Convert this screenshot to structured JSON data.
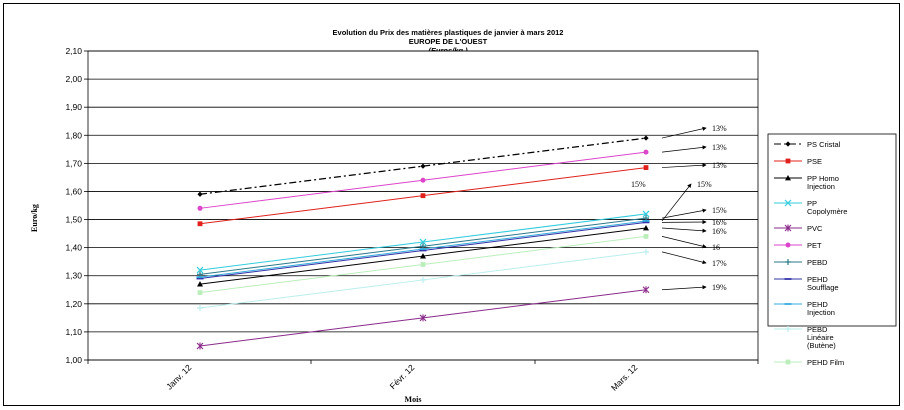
{
  "chart_data": {
    "type": "line",
    "title": "Evolution du Prix des matières plastiques de janvier à mars 2012",
    "subtitle": "EUROPE DE L'OUEST",
    "unit_text": "(Euros/kg )",
    "xlabel": "Mois",
    "ylabel": "Euro/kg",
    "ylim": [
      1.0,
      2.1
    ],
    "yticks": [
      "1,00",
      "1,10",
      "1,20",
      "1,30",
      "1,40",
      "1,50",
      "1,60",
      "1,70",
      "1,80",
      "1,90",
      "2,00",
      "2,10"
    ],
    "categories": [
      "Janv. 12",
      "Févr. 12",
      "Mars. 12"
    ],
    "grid": true,
    "legend_position": "right",
    "series": [
      {
        "name": "PS Cristal",
        "values": [
          1.59,
          1.69,
          1.79
        ],
        "color": "#000000",
        "marker": "diamond",
        "dash": "dashdot",
        "annotation": "13%"
      },
      {
        "name": "PSE",
        "values": [
          1.485,
          1.585,
          1.685
        ],
        "color": "#e0201b",
        "marker": "square",
        "dash": "solid",
        "annotation": "13%"
      },
      {
        "name": "PP Homo Injection",
        "values": [
          1.27,
          1.37,
          1.47
        ],
        "color": "#000000",
        "marker": "triangle",
        "dash": "solid",
        "annotation": "16%"
      },
      {
        "name": "PP Copolymère",
        "values": [
          1.32,
          1.42,
          1.52
        ],
        "color": "#33ccdd",
        "marker": "x",
        "dash": "solid",
        "annotation": "15%"
      },
      {
        "name": "PVC",
        "values": [
          1.05,
          1.15,
          1.25
        ],
        "color": "#8a2a8a",
        "marker": "star",
        "dash": "solid",
        "annotation": "19%"
      },
      {
        "name": "PET",
        "values": [
          1.54,
          1.64,
          1.74
        ],
        "color": "#dd44cc",
        "marker": "circle",
        "dash": "solid",
        "annotation": "13%"
      },
      {
        "name": "PEBD",
        "values": [
          1.305,
          1.405,
          1.505
        ],
        "color": "#2a7a8a",
        "marker": "plus",
        "dash": "solid",
        "annotation": "15%"
      },
      {
        "name": "PEHD Soufflage",
        "values": [
          1.29,
          1.39,
          1.49
        ],
        "color": "#3333aa",
        "marker": "dash",
        "dash": "solid",
        "annotation": "16%"
      },
      {
        "name": "PEHD Injection",
        "values": [
          1.295,
          1.395,
          1.495
        ],
        "color": "#33aadd",
        "marker": "dash",
        "dash": "solid",
        "annotation": "15%"
      },
      {
        "name": "PEBD Linéaire (Butène)",
        "values": [
          1.185,
          1.285,
          1.385
        ],
        "color": "#bbeeee",
        "marker": "plus",
        "dash": "solid",
        "annotation": "17%"
      },
      {
        "name": "PEHD Film",
        "values": [
          1.24,
          1.34,
          1.44
        ],
        "color": "#bbeebb",
        "marker": "square",
        "dash": "solid",
        "annotation": "16"
      }
    ]
  }
}
